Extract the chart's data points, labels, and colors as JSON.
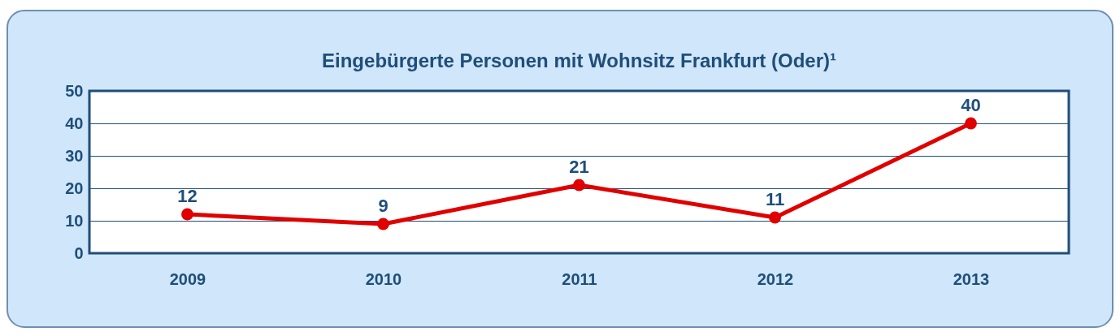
{
  "chart_data": {
    "type": "line",
    "title": "Eingebürgerte Personen mit Wohnsitz Frankfurt (Oder)¹",
    "categories": [
      "2009",
      "2010",
      "2011",
      "2012",
      "2013"
    ],
    "series": [
      {
        "color": "#e00000",
        "values": [
          12,
          9,
          21,
          11,
          40
        ]
      }
    ],
    "ylim": [
      0,
      50
    ],
    "yticks": [
      0,
      10,
      20,
      30,
      40,
      50
    ],
    "grid": "y",
    "marker": "circle",
    "line_style": "solid",
    "data_labels": true
  }
}
